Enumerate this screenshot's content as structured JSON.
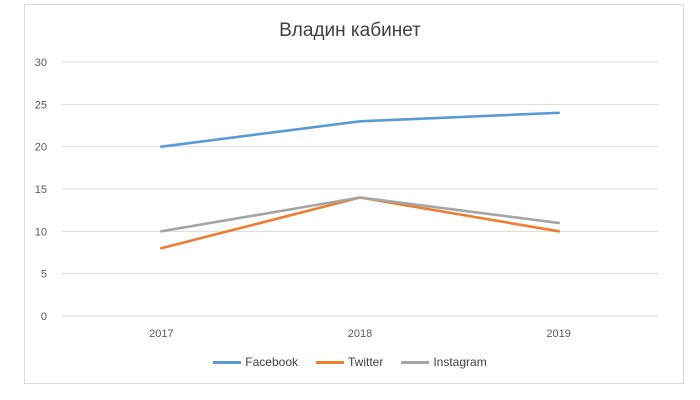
{
  "chart_data": {
    "type": "line",
    "title": "Владин кабинет",
    "xlabel": "",
    "ylabel": "",
    "categories": [
      "2017",
      "2018",
      "2019"
    ],
    "ylim": [
      0,
      30
    ],
    "yticks": [
      "0",
      "5",
      "10",
      "15",
      "20",
      "25",
      "30"
    ],
    "grid": true,
    "legend_position": "bottom",
    "series": [
      {
        "name": "Facebook",
        "values": [
          20,
          23,
          24
        ],
        "color": "#5b9bd5"
      },
      {
        "name": "Twitter",
        "values": [
          8,
          14,
          10
        ],
        "color": "#ed7d31"
      },
      {
        "name": "Instagram",
        "values": [
          10,
          14,
          11
        ],
        "color": "#a5a5a5"
      }
    ]
  }
}
